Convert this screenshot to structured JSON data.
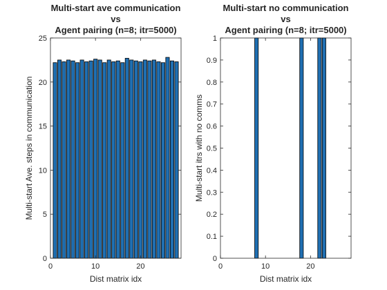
{
  "chart_data": [
    {
      "type": "bar",
      "title_lines": [
        "Multi-start ave communication",
        "vs",
        "Agent pairing (n=8; itr=5000)"
      ],
      "xlabel": "Dist matrix idx",
      "ylabel": "Multi-start Ave. steps in communication",
      "xlim": [
        0,
        29
      ],
      "ylim": [
        0,
        25
      ],
      "xticks": [
        0,
        10,
        20
      ],
      "yticks": [
        0,
        5,
        10,
        15,
        20,
        25
      ],
      "bar_color": "#1f6fb2",
      "grid": false,
      "x": [
        1,
        2,
        3,
        4,
        5,
        6,
        7,
        8,
        9,
        10,
        11,
        12,
        13,
        14,
        15,
        16,
        17,
        18,
        19,
        20,
        21,
        22,
        23,
        24,
        25,
        26,
        27,
        28
      ],
      "values": [
        22.2,
        22.5,
        22.3,
        22.5,
        22.4,
        22.2,
        22.5,
        22.3,
        22.4,
        22.6,
        22.5,
        22.2,
        22.5,
        22.3,
        22.4,
        22.2,
        22.7,
        22.5,
        22.4,
        22.3,
        22.5,
        22.4,
        22.5,
        22.3,
        22.2,
        22.8,
        22.4,
        22.3
      ]
    },
    {
      "type": "bar",
      "title_lines": [
        "Multi-start no communication",
        "vs",
        "Agent pairing (n=8; itr=5000)"
      ],
      "xlabel": "Dist matrix idx",
      "ylabel": "Multi-start itrs with no comms",
      "xlim": [
        0,
        29
      ],
      "ylim": [
        0,
        1
      ],
      "xticks": [
        0,
        10,
        20
      ],
      "yticks": [
        0,
        0.1,
        0.2,
        0.3,
        0.4,
        0.5,
        0.6,
        0.7,
        0.8,
        0.9,
        1
      ],
      "bar_color": "#1f6fb2",
      "grid": false,
      "x": [
        1,
        2,
        3,
        4,
        5,
        6,
        7,
        8,
        9,
        10,
        11,
        12,
        13,
        14,
        15,
        16,
        17,
        18,
        19,
        20,
        21,
        22,
        23,
        24,
        25,
        26,
        27,
        28
      ],
      "values": [
        0,
        0,
        0,
        0,
        0,
        0,
        0,
        1,
        0,
        0,
        0,
        0,
        0,
        0,
        0,
        0,
        0,
        1,
        0,
        0,
        0,
        1,
        1,
        0,
        0,
        0,
        0,
        0
      ]
    }
  ]
}
